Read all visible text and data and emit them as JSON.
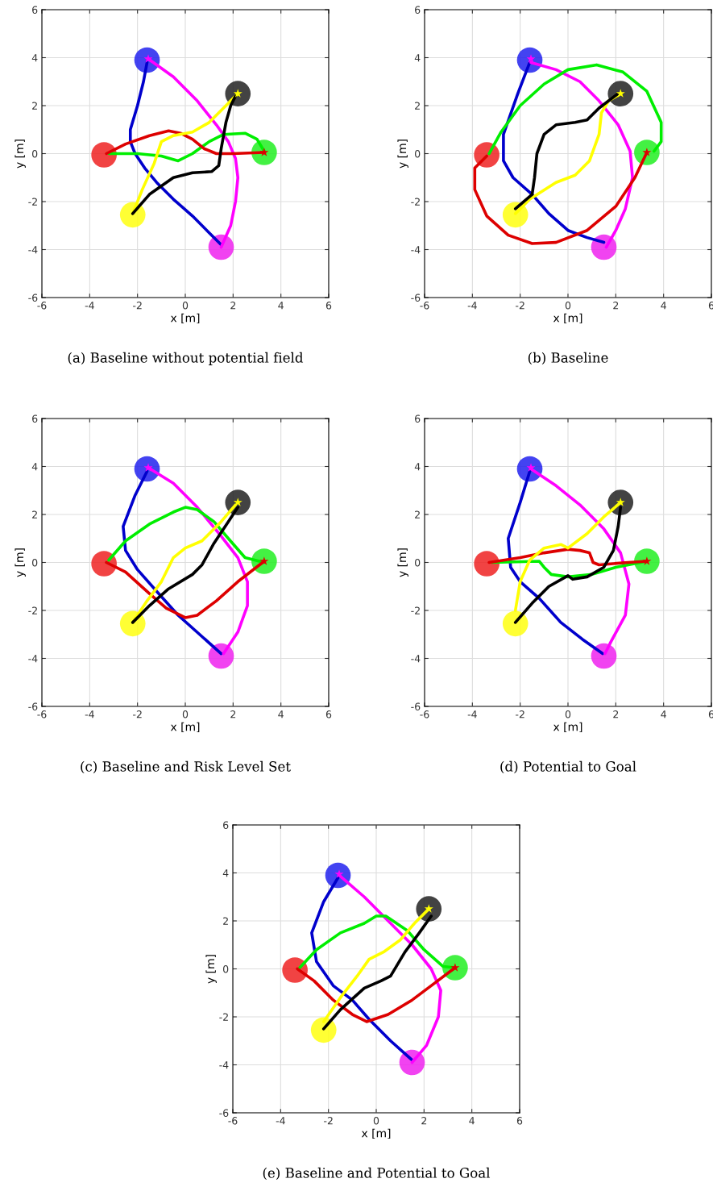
{
  "chart_data": [
    {
      "type": "line",
      "title": "(a) Baseline without potential field",
      "xlabel": "x [m]",
      "ylabel": "y [m]",
      "xlim": [
        -6,
        6
      ],
      "ylim": [
        -6,
        6
      ],
      "xticks": [
        -6,
        -4,
        -2,
        0,
        2,
        4,
        6
      ],
      "yticks": [
        -6,
        -4,
        -2,
        0,
        2,
        4,
        6
      ],
      "grid": true,
      "series": [
        {
          "type": "scatter",
          "marker": "circle",
          "colors": [
            "#ee2222",
            "#2222ee",
            "#222222",
            "#22ee22",
            "#ee22ee",
            "#ffff11"
          ],
          "x": [
            -3.4,
            -1.6,
            2.2,
            3.3,
            1.5,
            -2.2
          ],
          "values": [
            -0.05,
            3.9,
            2.5,
            0.05,
            -3.9,
            -2.55
          ]
        },
        {
          "type": "line",
          "color": "#0000cc",
          "x": [
            -1.6,
            -1.75,
            -2.0,
            -2.3,
            -2.3,
            -2.1,
            -1.7,
            -1.2,
            -0.5,
            0.3,
            1.0,
            1.5
          ],
          "values": [
            3.8,
            3.0,
            2.0,
            1.0,
            0.5,
            0,
            -0.6,
            -1.2,
            -1.9,
            -2.6,
            -3.3,
            -3.8
          ]
        },
        {
          "type": "line",
          "color": "#ff00ff",
          "x": [
            -1.55,
            -0.5,
            0.5,
            1.3,
            1.8,
            2.1,
            2.2,
            2.1,
            1.9,
            1.5
          ],
          "values": [
            3.95,
            3.2,
            2.2,
            1.2,
            0.5,
            -0.2,
            -1.0,
            -2.0,
            -3.0,
            -3.9
          ]
        },
        {
          "type": "line",
          "color": "#00ee00",
          "x": [
            -3.2,
            -2.0,
            -1.0,
            -0.3,
            0.3,
            1.0,
            1.6,
            2.5,
            3.0,
            3.3
          ],
          "values": [
            0,
            0,
            -0.1,
            -0.3,
            0,
            0.5,
            0.8,
            0.85,
            0.6,
            0.1
          ]
        },
        {
          "type": "line",
          "color": "#dd0000",
          "x": [
            -3.3,
            -2.5,
            -1.5,
            -0.7,
            -0.2,
            0.3,
            0.8,
            1.3,
            2.0,
            3.3
          ],
          "values": [
            0,
            0.4,
            0.75,
            0.95,
            0.85,
            0.6,
            0.2,
            0.0,
            0,
            0.05
          ]
        },
        {
          "type": "line",
          "color": "#ffff00",
          "x": [
            -2.2,
            -1.8,
            -1.3,
            -1.0,
            -0.5,
            0.3,
            1.0,
            1.6,
            2.2
          ],
          "values": [
            -2.5,
            -1.5,
            -0.4,
            0.5,
            0.75,
            0.9,
            1.3,
            1.9,
            2.5
          ]
        },
        {
          "type": "line",
          "color": "#000000",
          "x": [
            -2.2,
            -1.5,
            -0.5,
            0.3,
            1.1,
            1.4,
            1.5,
            1.7,
            1.9,
            2.1
          ],
          "values": [
            -2.5,
            -1.7,
            -1.0,
            -0.8,
            -0.75,
            -0.5,
            0.2,
            1.3,
            2.0,
            2.4
          ]
        },
        {
          "type": "scatter",
          "marker": "star",
          "colors": [
            "#dd0000",
            "#ffff00",
            "#ff00ff"
          ],
          "x": [
            3.3,
            2.2,
            -1.55
          ],
          "values": [
            0.05,
            2.5,
            3.95
          ]
        }
      ]
    },
    {
      "type": "line",
      "title": "(b) Baseline",
      "xlabel": "x [m]",
      "ylabel": "y [m]",
      "xlim": [
        -6,
        6
      ],
      "ylim": [
        -6,
        6
      ],
      "xticks": [
        -6,
        -4,
        -2,
        0,
        2,
        4,
        6
      ],
      "yticks": [
        -6,
        -4,
        -2,
        0,
        2,
        4,
        6
      ],
      "grid": true,
      "series": [
        {
          "type": "scatter",
          "marker": "circle",
          "colors": [
            "#ee2222",
            "#2222ee",
            "#222222",
            "#22ee22",
            "#ee22ee",
            "#ffff11"
          ],
          "x": [
            -3.4,
            -1.6,
            2.2,
            3.3,
            1.5,
            -2.2
          ],
          "values": [
            -0.05,
            3.9,
            2.5,
            0.05,
            -3.9,
            -2.55
          ]
        },
        {
          "type": "line",
          "color": "#0000cc",
          "x": [
            -1.6,
            -2.1,
            -2.7,
            -2.7,
            -2.3,
            -1.5,
            -0.8,
            0,
            0.8,
            1.5
          ],
          "values": [
            3.8,
            2.5,
            0.8,
            -0.3,
            -1.0,
            -1.7,
            -2.5,
            -3.2,
            -3.5,
            -3.7
          ]
        },
        {
          "type": "line",
          "color": "#ff00ff",
          "x": [
            -1.55,
            -0.5,
            0.5,
            1.3,
            2.1,
            2.6,
            2.7,
            2.4,
            2.0,
            1.6
          ],
          "values": [
            3.8,
            3.5,
            3.0,
            2.2,
            1.2,
            0.1,
            -1.0,
            -2.3,
            -3.2,
            -3.9
          ]
        },
        {
          "type": "line",
          "color": "#00ee00",
          "x": [
            -3.3,
            -2.8,
            -2.0,
            -1.0,
            0,
            1.2,
            2.3,
            3.3,
            3.9,
            3.9,
            3.6
          ],
          "values": [
            0,
            0.9,
            2.0,
            2.9,
            3.5,
            3.7,
            3.4,
            2.6,
            1.3,
            0.5,
            0.1
          ]
        },
        {
          "type": "line",
          "color": "#dd0000",
          "x": [
            -3.4,
            -3.9,
            -3.9,
            -3.4,
            -2.5,
            -1.5,
            -0.5,
            0.8,
            2.0,
            2.8,
            3.3
          ],
          "values": [
            -0.1,
            -0.6,
            -1.5,
            -2.6,
            -3.4,
            -3.75,
            -3.7,
            -3.2,
            -2.2,
            -1.0,
            0.05
          ]
        },
        {
          "type": "line",
          "color": "#ffff00",
          "x": [
            -2.2,
            -1.6,
            -0.5,
            0.3,
            0.9,
            1.3,
            1.4,
            1.7,
            2.2
          ],
          "values": [
            -2.5,
            -1.9,
            -1.2,
            -0.9,
            -0.3,
            0.8,
            1.7,
            2.2,
            2.5
          ]
        },
        {
          "type": "line",
          "color": "#000000",
          "x": [
            -2.2,
            -1.5,
            -1.4,
            -1.3,
            -1.0,
            -0.5,
            0.3,
            0.8,
            1.3,
            2.1
          ],
          "values": [
            -2.3,
            -1.7,
            -1.0,
            0,
            0.8,
            1.2,
            1.3,
            1.4,
            1.9,
            2.5
          ]
        },
        {
          "type": "scatter",
          "marker": "star",
          "colors": [
            "#dd0000",
            "#ffff00",
            "#ff00ff"
          ],
          "x": [
            3.3,
            2.2,
            -1.55
          ],
          "values": [
            0.05,
            2.5,
            3.95
          ]
        }
      ]
    },
    {
      "type": "line",
      "title": "(c) Baseline and Risk Level Set",
      "xlabel": "x [m]",
      "ylabel": "y [m]",
      "xlim": [
        -6,
        6
      ],
      "ylim": [
        -6,
        6
      ],
      "xticks": [
        -6,
        -4,
        -2,
        0,
        2,
        4,
        6
      ],
      "yticks": [
        -6,
        -4,
        -2,
        0,
        2,
        4,
        6
      ],
      "grid": true,
      "series": [
        {
          "type": "scatter",
          "marker": "circle",
          "colors": [
            "#ee2222",
            "#2222ee",
            "#222222",
            "#22ee22",
            "#ee22ee",
            "#ffff11"
          ],
          "x": [
            -3.4,
            -1.6,
            2.2,
            3.3,
            1.5,
            -2.2
          ],
          "values": [
            -0.05,
            3.9,
            2.5,
            0.05,
            -3.9,
            -2.55
          ]
        },
        {
          "type": "line",
          "color": "#0000cc",
          "x": [
            -1.6,
            -2.1,
            -2.6,
            -2.5,
            -2.0,
            -1.2,
            -0.3,
            0.6,
            1.5
          ],
          "values": [
            3.8,
            2.8,
            1.5,
            0.5,
            -0.3,
            -1.2,
            -2.2,
            -3.0,
            -3.8
          ]
        },
        {
          "type": "line",
          "color": "#ff00ff",
          "x": [
            -1.55,
            -0.5,
            0.5,
            1.5,
            2.2,
            2.6,
            2.6,
            2.2,
            1.6
          ],
          "values": [
            3.95,
            3.3,
            2.3,
            1.1,
            0.2,
            -0.8,
            -1.8,
            -2.9,
            -3.8
          ]
        },
        {
          "type": "line",
          "color": "#00ee00",
          "x": [
            -3.2,
            -2.5,
            -1.5,
            -0.5,
            0,
            0.5,
            1.2,
            1.8,
            2.5,
            3.3
          ],
          "values": [
            0.1,
            0.9,
            1.6,
            2.1,
            2.3,
            2.2,
            1.7,
            1.0,
            0.2,
            0
          ]
        },
        {
          "type": "line",
          "color": "#dd0000",
          "x": [
            -3.3,
            -2.5,
            -1.5,
            -0.8,
            0,
            0.5,
            1.3,
            2.2,
            3.3
          ],
          "values": [
            0,
            -0.4,
            -1.3,
            -1.9,
            -2.3,
            -2.2,
            -1.6,
            -0.8,
            0.05
          ]
        },
        {
          "type": "line",
          "color": "#ffff00",
          "x": [
            -2.2,
            -1.6,
            -1.0,
            -0.5,
            0,
            0.7,
            1.5,
            2.1
          ],
          "values": [
            -2.5,
            -1.6,
            -0.8,
            0.2,
            0.6,
            0.9,
            1.7,
            2.4
          ]
        },
        {
          "type": "line",
          "color": "#000000",
          "x": [
            -2.2,
            -1.5,
            -0.7,
            0.3,
            0.7,
            1.2,
            1.8,
            2.2
          ],
          "values": [
            -2.5,
            -1.8,
            -1.1,
            -0.5,
            -0.1,
            0.8,
            1.7,
            2.3
          ]
        },
        {
          "type": "scatter",
          "marker": "star",
          "colors": [
            "#dd0000",
            "#ffff00",
            "#ff00ff"
          ],
          "x": [
            3.3,
            2.2,
            -1.55
          ],
          "values": [
            0.05,
            2.5,
            3.95
          ]
        }
      ]
    },
    {
      "type": "line",
      "title": "(d) Potential to Goal",
      "xlabel": "x [m]",
      "ylabel": "y [m]",
      "xlim": [
        -6,
        6
      ],
      "ylim": [
        -6,
        6
      ],
      "xticks": [
        -6,
        -4,
        -2,
        0,
        2,
        4,
        6
      ],
      "yticks": [
        -6,
        -4,
        -2,
        0,
        2,
        4,
        6
      ],
      "grid": true,
      "series": [
        {
          "type": "scatter",
          "marker": "circle",
          "colors": [
            "#ee2222",
            "#2222ee",
            "#222222",
            "#22ee22",
            "#ee22ee",
            "#ffff11"
          ],
          "x": [
            -3.4,
            -1.6,
            2.2,
            3.3,
            1.5,
            -2.2
          ],
          "values": [
            -0.05,
            3.9,
            2.5,
            0.05,
            -3.9,
            -2.55
          ]
        },
        {
          "type": "line",
          "color": "#0000cc",
          "x": [
            -1.6,
            -2.0,
            -2.5,
            -2.4,
            -2.0,
            -1.2,
            -0.3,
            0.6,
            1.45
          ],
          "values": [
            3.8,
            2.5,
            1.0,
            -0.2,
            -0.8,
            -1.5,
            -2.5,
            -3.2,
            -3.8
          ]
        },
        {
          "type": "line",
          "color": "#ff00ff",
          "x": [
            -1.55,
            -0.5,
            0.5,
            1.5,
            2.2,
            2.55,
            2.4,
            1.8,
            1.55
          ],
          "values": [
            3.9,
            3.2,
            2.4,
            1.4,
            0.4,
            -0.9,
            -2.2,
            -3.3,
            -3.8
          ]
        },
        {
          "type": "line",
          "color": "#00ee00",
          "x": [
            -3.2,
            -1.2,
            -1.0,
            -0.7,
            0,
            1.0,
            2.0,
            3.3
          ],
          "values": [
            0,
            0.05,
            -0.2,
            -0.5,
            -0.6,
            -0.5,
            -0.2,
            0.05
          ]
        },
        {
          "type": "line",
          "color": "#dd0000",
          "x": [
            -3.3,
            -2.0,
            -1.0,
            0,
            0.5,
            0.9,
            1.05,
            1.3,
            2.5,
            3.3
          ],
          "values": [
            0,
            0.2,
            0.4,
            0.55,
            0.5,
            0.4,
            0.0,
            -0.1,
            0,
            0.05
          ]
        },
        {
          "type": "line",
          "color": "#ffff00",
          "x": [
            -2.2,
            -2.0,
            -1.6,
            -1.0,
            -0.3,
            0,
            0.8,
            1.5,
            2.2
          ],
          "values": [
            -2.0,
            -0.8,
            0.1,
            0.6,
            0.75,
            0.6,
            1.2,
            1.9,
            2.5
          ]
        },
        {
          "type": "line",
          "color": "#000000",
          "x": [
            -2.2,
            -1.5,
            -0.8,
            0,
            0.2,
            0.8,
            1.5,
            1.9,
            2.1,
            2.2
          ],
          "values": [
            -2.5,
            -1.7,
            -1.0,
            -0.55,
            -0.7,
            -0.6,
            -0.2,
            0.5,
            1.5,
            2.3
          ]
        },
        {
          "type": "scatter",
          "marker": "star",
          "colors": [
            "#dd0000",
            "#ffff00",
            "#ff00ff"
          ],
          "x": [
            3.3,
            2.2,
            -1.55
          ],
          "values": [
            0.05,
            2.5,
            3.95
          ]
        }
      ]
    },
    {
      "type": "line",
      "title": "(e) Baseline and Potential to Goal",
      "xlabel": "x [m]",
      "ylabel": "y [m]",
      "xlim": [
        -6,
        6
      ],
      "ylim": [
        -6,
        6
      ],
      "xticks": [
        -6,
        -4,
        -2,
        0,
        2,
        4,
        6
      ],
      "yticks": [
        -6,
        -4,
        -2,
        0,
        2,
        4,
        6
      ],
      "grid": true,
      "series": [
        {
          "type": "scatter",
          "marker": "circle",
          "colors": [
            "#ee2222",
            "#2222ee",
            "#222222",
            "#22ee22",
            "#ee22ee",
            "#ffff11"
          ],
          "x": [
            -3.4,
            -1.6,
            2.2,
            3.3,
            1.5,
            -2.2
          ],
          "values": [
            -0.05,
            3.9,
            2.5,
            0.05,
            -3.9,
            -2.55
          ]
        },
        {
          "type": "line",
          "color": "#0000cc",
          "x": [
            -1.6,
            -2.2,
            -2.7,
            -2.5,
            -1.8,
            -1.0,
            -0.3,
            0.6,
            1.5
          ],
          "values": [
            3.8,
            2.8,
            1.5,
            0.3,
            -0.7,
            -1.3,
            -2.1,
            -3.0,
            -3.8
          ]
        },
        {
          "type": "line",
          "color": "#ff00ff",
          "x": [
            -1.55,
            -0.5,
            0.5,
            1.5,
            2.3,
            2.7,
            2.6,
            2.1,
            1.5
          ],
          "values": [
            3.9,
            3.0,
            2.0,
            1.0,
            0.0,
            -0.9,
            -2.0,
            -3.2,
            -3.9
          ]
        },
        {
          "type": "line",
          "color": "#00ee00",
          "x": [
            -3.2,
            -2.5,
            -1.5,
            -0.5,
            0,
            0.4,
            1.3,
            2.0,
            2.8,
            3.3
          ],
          "values": [
            0.05,
            0.8,
            1.5,
            1.9,
            2.2,
            2.2,
            1.6,
            0.8,
            0.1,
            0.05
          ]
        },
        {
          "type": "line",
          "color": "#dd0000",
          "x": [
            -3.3,
            -2.6,
            -1.8,
            -1.0,
            -0.4,
            0.5,
            1.5,
            2.3,
            3.3
          ],
          "values": [
            0,
            -0.5,
            -1.3,
            -1.9,
            -2.2,
            -1.9,
            -1.3,
            -0.7,
            0.05
          ]
        },
        {
          "type": "line",
          "color": "#ffff00",
          "x": [
            -2.2,
            -1.5,
            -0.8,
            -0.3,
            0.3,
            1.0,
            1.6,
            2.2
          ],
          "values": [
            -2.2,
            -1.2,
            -0.3,
            0.4,
            0.7,
            1.2,
            1.9,
            2.5
          ]
        },
        {
          "type": "line",
          "color": "#000000",
          "x": [
            -2.2,
            -1.5,
            -0.5,
            0.2,
            0.6,
            1.2,
            1.8,
            2.3
          ],
          "values": [
            -2.5,
            -1.7,
            -0.8,
            -0.5,
            -0.3,
            0.7,
            1.5,
            2.2
          ]
        },
        {
          "type": "scatter",
          "marker": "star",
          "colors": [
            "#dd0000",
            "#ffff00",
            "#ff00ff"
          ],
          "x": [
            3.3,
            2.2,
            -1.55
          ],
          "values": [
            0.05,
            2.5,
            3.95
          ]
        }
      ]
    }
  ]
}
